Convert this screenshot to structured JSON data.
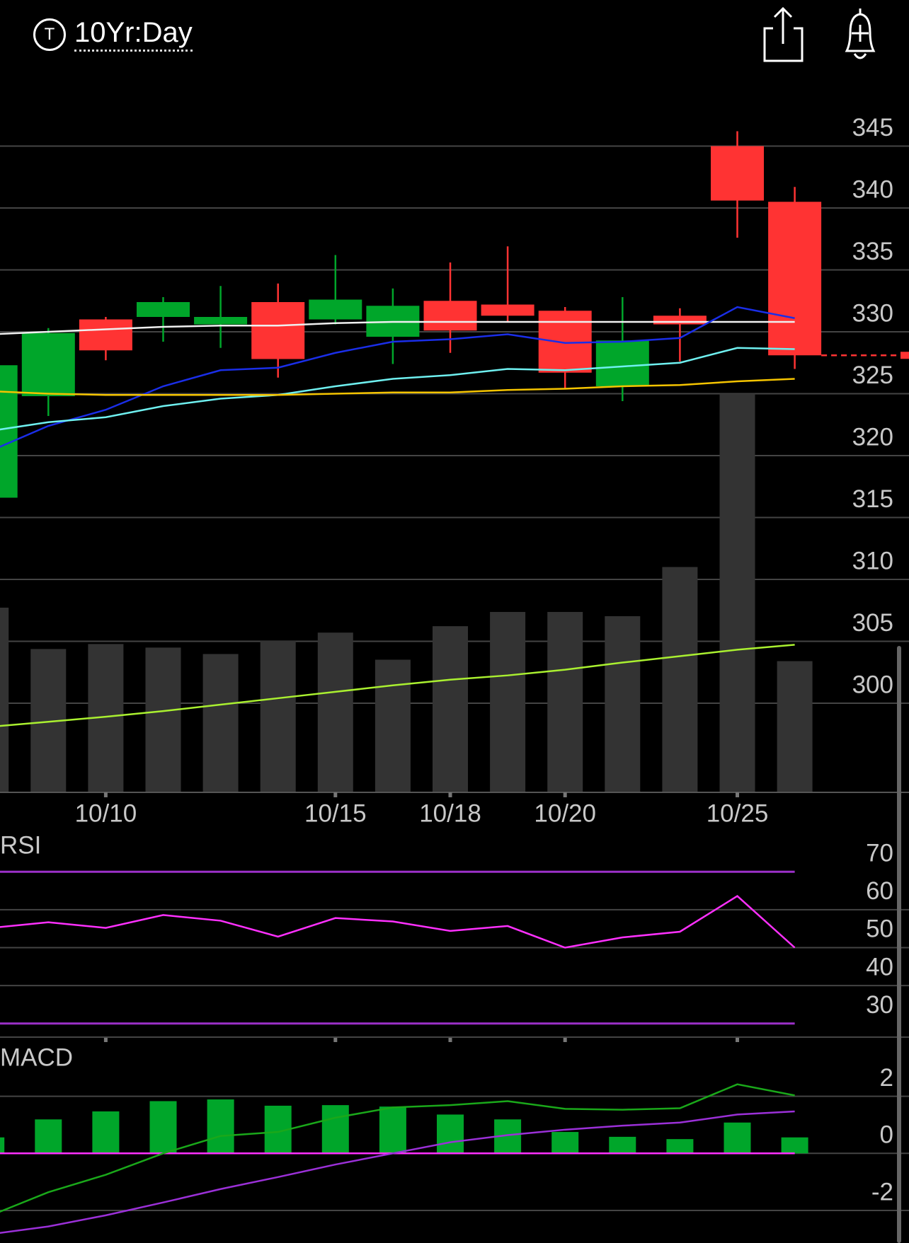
{
  "header": {
    "badge": "T",
    "title": "10Yr:Day"
  },
  "chart_data": [
    {
      "type": "candlestick",
      "categories": [
        null,
        null,
        "10/10",
        null,
        null,
        null,
        "10/15",
        null,
        "10/18",
        null,
        "10/20",
        null,
        null,
        "10/25",
        null
      ],
      "open": [
        316.6,
        324.8,
        331.0,
        331.2,
        330.6,
        332.4,
        331.0,
        329.6,
        332.5,
        332.2,
        331.7,
        325.6,
        331.3,
        345.0,
        340.5
      ],
      "high": [
        327.3,
        330.3,
        331.2,
        332.8,
        333.7,
        333.9,
        336.2,
        333.5,
        335.6,
        336.9,
        332.0,
        332.8,
        331.9,
        346.2,
        341.7
      ],
      "low": [
        316.6,
        323.2,
        327.7,
        329.2,
        328.7,
        326.3,
        330.6,
        327.4,
        328.3,
        330.8,
        325.4,
        324.4,
        327.6,
        337.6,
        327.0
      ],
      "close": [
        327.3,
        329.9,
        328.5,
        332.4,
        331.2,
        327.8,
        332.6,
        332.1,
        330.1,
        331.3,
        326.7,
        329.3,
        330.6,
        340.6,
        328.1
      ],
      "up_color": "#00a62a",
      "down_color": "#ff3333",
      "ylim": [
        292.8,
        350.4
      ],
      "yticks": [
        300,
        305,
        310,
        315,
        320,
        325,
        330,
        335,
        340,
        345
      ],
      "grid": true,
      "series": [
        {
          "color": "#f0f0f0",
          "values": [
            329.8,
            330.0,
            330.2,
            330.4,
            330.5,
            330.5,
            330.7,
            330.8,
            330.8,
            330.8,
            330.8,
            330.8,
            330.8,
            330.8,
            330.8
          ]
        },
        {
          "color": "#1a2ee8",
          "values": [
            320.4,
            322.4,
            323.7,
            325.6,
            326.9,
            327.1,
            328.3,
            329.2,
            329.4,
            329.8,
            329.1,
            329.2,
            329.5,
            332.0,
            331.1
          ]
        },
        {
          "color": "#6ff0f0",
          "values": [
            322.0,
            322.7,
            323.1,
            324.0,
            324.6,
            324.9,
            325.6,
            326.2,
            326.5,
            327.0,
            326.9,
            327.2,
            327.5,
            328.7,
            328.6
          ]
        },
        {
          "color": "#f5c400",
          "values": [
            325.2,
            325.0,
            324.9,
            324.9,
            324.9,
            324.9,
            325.0,
            325.1,
            325.1,
            325.3,
            325.4,
            325.6,
            325.7,
            326.0,
            326.2
          ]
        }
      ],
      "volume": {
        "color": "#333333",
        "ylim": [
          0,
          100
        ],
        "values": [
          25.9,
          20.1,
          20.8,
          20.3,
          19.4,
          21.3,
          22.4,
          18.6,
          23.3,
          25.3,
          25.3,
          24.7,
          31.6,
          55.9,
          18.4
        ],
        "ma_color": "#aaf030",
        "ma": [
          9.2,
          9.9,
          10.6,
          11.4,
          12.3,
          13.2,
          14.1,
          15.0,
          15.8,
          16.4,
          17.2,
          18.2,
          19.1,
          20.0,
          20.7
        ]
      }
    },
    {
      "type": "rsi",
      "title": "RSI",
      "ylim": [
        26.4,
        80.5
      ],
      "yticks": [
        30,
        40,
        50,
        60,
        70
      ],
      "levels": [
        30,
        70
      ],
      "level_color": "#9b30c8",
      "color": "#ff30ff",
      "values": [
        55.2,
        56.7,
        55.2,
        58.6,
        57.1,
        52.9,
        57.8,
        56.9,
        54.4,
        55.7,
        50.0,
        52.7,
        54.2,
        63.6,
        50.0
      ]
    },
    {
      "type": "macd",
      "title": "MACD",
      "ylim": [
        -3.14,
        3.75
      ],
      "yticks": [
        -2,
        0,
        2
      ],
      "zero_color": "#ff30ff",
      "histogram": {
        "color": "#00a62a",
        "values": [
          0.56,
          1.19,
          1.47,
          1.83,
          1.89,
          1.67,
          1.69,
          1.64,
          1.36,
          1.19,
          0.75,
          0.58,
          0.5,
          1.08,
          0.56
        ]
      },
      "series": [
        {
          "color": "#1aa81a",
          "values": [
            -2.17,
            -1.36,
            -0.75,
            0.0,
            0.61,
            0.75,
            1.25,
            1.61,
            1.69,
            1.83,
            1.56,
            1.53,
            1.58,
            2.42,
            2.03
          ]
        },
        {
          "color": "#9b30d8",
          "values": [
            -2.83,
            -2.56,
            -2.17,
            -1.72,
            -1.25,
            -0.83,
            -0.39,
            0.0,
            0.39,
            0.64,
            0.83,
            0.97,
            1.08,
            1.36,
            1.47
          ]
        }
      ]
    }
  ]
}
